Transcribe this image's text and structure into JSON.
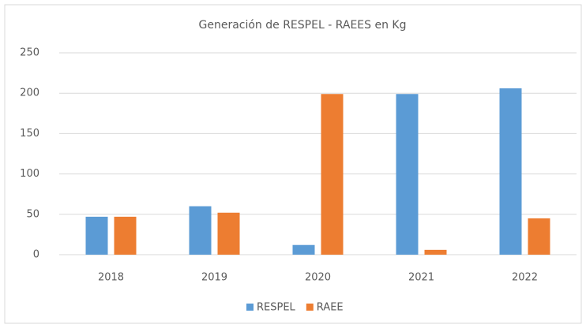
{
  "chart_data": {
    "type": "bar",
    "title": "Generación de RESPEL - RAEES en Kg",
    "categories": [
      "2018",
      "2019",
      "2020",
      "2021",
      "2022"
    ],
    "series": [
      {
        "name": "RESPEL",
        "color": "#5b9bd5",
        "values": [
          47,
          60,
          12,
          199,
          206
        ]
      },
      {
        "name": "RAEE",
        "color": "#ed7d31",
        "values": [
          47,
          52,
          199,
          6,
          45
        ]
      }
    ],
    "ylim": [
      0,
      250
    ],
    "yticks": [
      0,
      50,
      100,
      150,
      200,
      250
    ],
    "grid": true,
    "legend": "bottom"
  }
}
